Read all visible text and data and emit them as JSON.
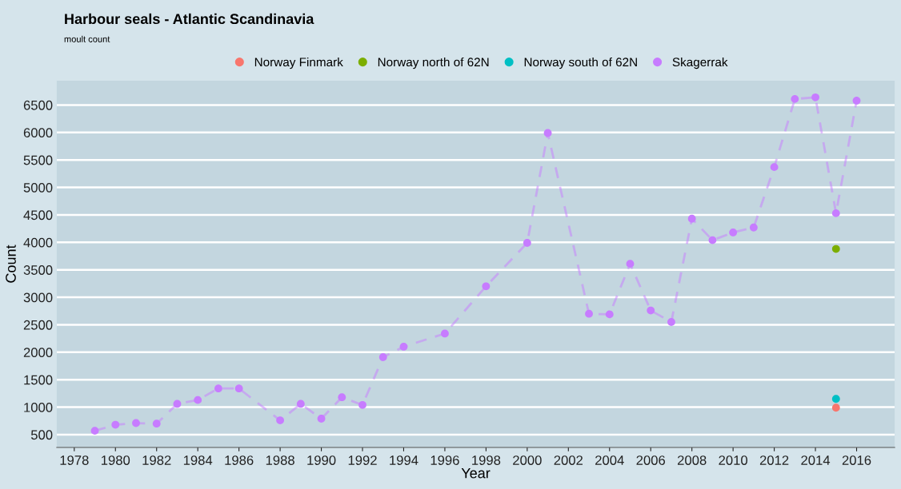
{
  "chart_data": {
    "type": "line",
    "title": "Harbour seals - Atlantic Scandinavia",
    "subtitle": "moult count",
    "xlabel": "Year",
    "ylabel": "Count",
    "xlim": [
      1977.15,
      2017.85
    ],
    "xticks": [
      1978,
      1980,
      1982,
      1984,
      1986,
      1988,
      1990,
      1992,
      1994,
      1996,
      1998,
      2000,
      2002,
      2004,
      2006,
      2008,
      2010,
      2012,
      2014,
      2016
    ],
    "ylim": [
      267,
      6943
    ],
    "yticks": [
      500,
      1000,
      1500,
      2000,
      2500,
      3000,
      3500,
      4000,
      4500,
      5000,
      5500,
      6000,
      6500
    ],
    "grid": "y",
    "legend": "top",
    "marker": "circle",
    "series": [
      {
        "name": "Norway Finmark",
        "type": "scatter",
        "color": "#f8766d",
        "x": [
          2015
        ],
        "values": [
          990
        ]
      },
      {
        "name": "Norway north of 62N",
        "type": "scatter",
        "color": "#7cae00",
        "x": [
          2015
        ],
        "values": [
          3880
        ]
      },
      {
        "name": "Norway south of 62N",
        "type": "scatter",
        "color": "#00bfc4",
        "x": [
          2015
        ],
        "values": [
          1150
        ]
      },
      {
        "name": "Skagerrak",
        "line_style": "dashed",
        "color": "#c77cff",
        "x": [
          1979,
          1980,
          1981,
          1982,
          1983,
          1984,
          1985,
          1986,
          1988,
          1989,
          1990,
          1991,
          1992,
          1993,
          1994,
          1996,
          1998,
          2000,
          2001,
          2003,
          2004,
          2005,
          2006,
          2007,
          2008,
          2009,
          2010,
          2011,
          2012,
          2013,
          2014,
          2015,
          2016
        ],
        "values": [
          570,
          680,
          710,
          700,
          1060,
          1130,
          1340,
          1340,
          760,
          1060,
          790,
          1180,
          1040,
          1910,
          2100,
          2340,
          3200,
          3990,
          5990,
          2700,
          2690,
          3610,
          2760,
          2550,
          4430,
          4040,
          4180,
          4270,
          5370,
          6610,
          6640,
          4530,
          6580
        ]
      }
    ]
  }
}
